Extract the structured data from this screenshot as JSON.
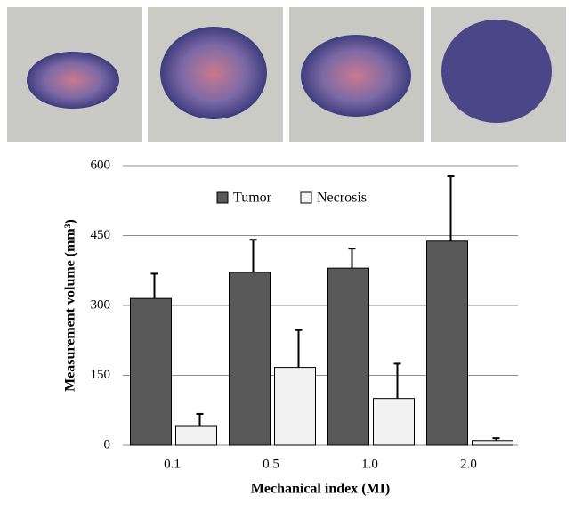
{
  "chart_data": {
    "type": "bar",
    "categories": [
      "0.1",
      "0.5",
      "1.0",
      "2.0"
    ],
    "series": [
      {
        "name": "Tumor",
        "color": "#595959",
        "values": [
          315,
          371,
          380,
          438
        ],
        "errors": [
          53,
          70,
          42,
          139
        ]
      },
      {
        "name": "Necrosis",
        "color": "#f2f2f2",
        "values": [
          42,
          167,
          100,
          10
        ],
        "errors": [
          25,
          80,
          75,
          5
        ]
      }
    ],
    "ylim": [
      0,
      600
    ],
    "yticks": [
      0,
      150,
      300,
      450,
      600
    ],
    "grid": true,
    "x_label": "Mechanical index (MI)",
    "y_label": "Measurement volume (mm³)"
  }
}
